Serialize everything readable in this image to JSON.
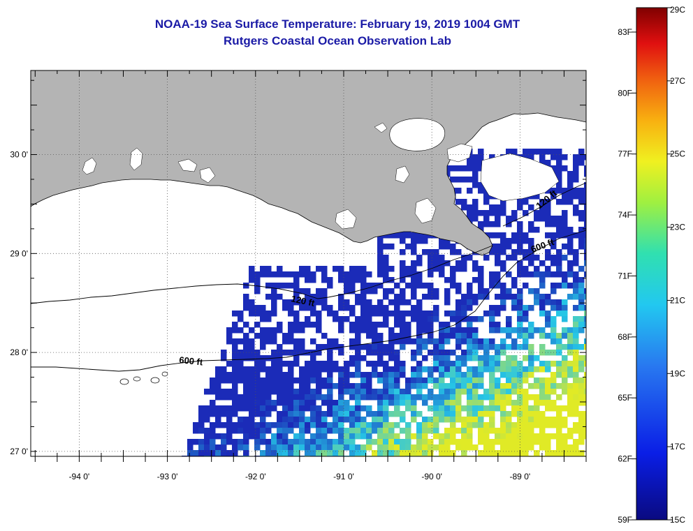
{
  "title": "NOAA-19 Sea Surface Temperature:  February 19, 2019 1004 GMT",
  "subtitle": "Rutgers Coastal Ocean Observation Lab",
  "map": {
    "lon_range": [
      -94.55,
      -88.25
    ],
    "lat_range": [
      26.95,
      30.85
    ],
    "lon_labels": [
      {
        "value": -94,
        "text": "-94 0'"
      },
      {
        "value": -93,
        "text": "-93 0'"
      },
      {
        "value": -92,
        "text": "-92 0'"
      },
      {
        "value": -91,
        "text": "-91 0'"
      },
      {
        "value": -90,
        "text": "-90 0'"
      },
      {
        "value": -89,
        "text": "-89 0'"
      }
    ],
    "lat_labels": [
      {
        "value": 30,
        "text": "30 0'"
      },
      {
        "value": 29,
        "text": "29 0'"
      },
      {
        "value": 28,
        "text": "28 0'"
      },
      {
        "value": 27,
        "text": "27 0'"
      }
    ],
    "contours": [
      {
        "label": "120 ft"
      },
      {
        "label": "600 ft"
      },
      {
        "label": "600 ft"
      },
      {
        "label": "120 ft"
      }
    ],
    "colors": {
      "land": "#b4b4b4",
      "ocean_no_data": "#ffffff",
      "sst_cold": "#1b2bb8",
      "sst_mid": "#26c6e6",
      "sst_warm": "#e0ea26"
    }
  },
  "colorbar": {
    "min_c": 15,
    "max_c": 29,
    "celsius_labels": [
      {
        "value": 29,
        "text": "29C"
      },
      {
        "value": 27,
        "text": "27C"
      },
      {
        "value": 25,
        "text": "25C"
      },
      {
        "value": 23,
        "text": "23C"
      },
      {
        "value": 21,
        "text": "21C"
      },
      {
        "value": 19,
        "text": "19C"
      },
      {
        "value": 17,
        "text": "17C"
      },
      {
        "value": 15,
        "text": "15C"
      }
    ],
    "fahrenheit_labels": [
      {
        "value": 83,
        "text": "83F"
      },
      {
        "value": 80,
        "text": "80F"
      },
      {
        "value": 77,
        "text": "77F"
      },
      {
        "value": 74,
        "text": "74F"
      },
      {
        "value": 71,
        "text": "71F"
      },
      {
        "value": 68,
        "text": "68F"
      },
      {
        "value": 65,
        "text": "65F"
      },
      {
        "value": 62,
        "text": "62F"
      },
      {
        "value": 59,
        "text": "59F"
      }
    ]
  }
}
